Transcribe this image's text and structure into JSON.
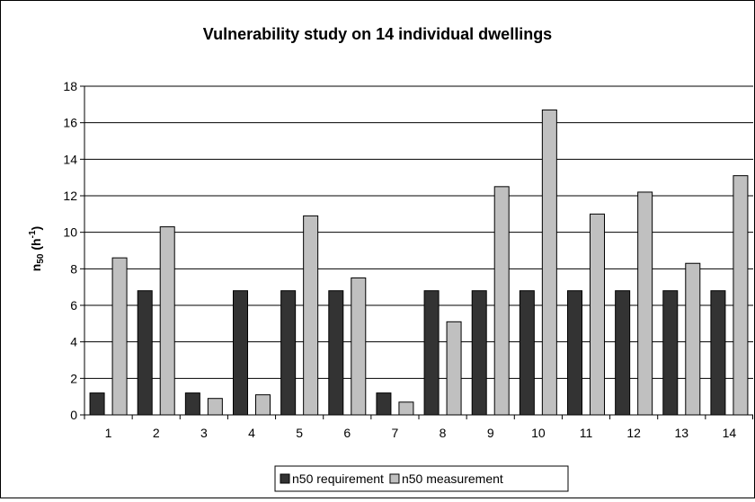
{
  "chart_data": {
    "type": "bar",
    "title": "Vulnerability study on 14 individual dwellings",
    "xlabel": "",
    "ylabel_main": "n",
    "ylabel_sub": "50",
    "ylabel_unit_pre": " (h",
    "ylabel_unit_sup": "-1",
    "ylabel_unit_post": ")",
    "ylim": [
      0,
      18
    ],
    "yticks": [
      0,
      2,
      4,
      6,
      8,
      10,
      12,
      14,
      16,
      18
    ],
    "grid": true,
    "legend_position": "bottom",
    "categories": [
      "1",
      "2",
      "3",
      "4",
      "5",
      "6",
      "7",
      "8",
      "9",
      "10",
      "11",
      "12",
      "13",
      "14"
    ],
    "series": [
      {
        "name": "n50 requirement",
        "color": "#333333",
        "values": [
          1.2,
          6.8,
          1.2,
          6.8,
          6.8,
          6.8,
          1.2,
          6.8,
          6.8,
          6.8,
          6.8,
          6.8,
          6.8,
          6.8
        ]
      },
      {
        "name": "n50 measurement",
        "color": "#c0c0c0",
        "values": [
          8.6,
          10.3,
          0.9,
          1.1,
          10.9,
          7.5,
          0.7,
          5.1,
          12.5,
          16.7,
          11.0,
          12.2,
          8.3,
          13.1
        ]
      }
    ]
  }
}
